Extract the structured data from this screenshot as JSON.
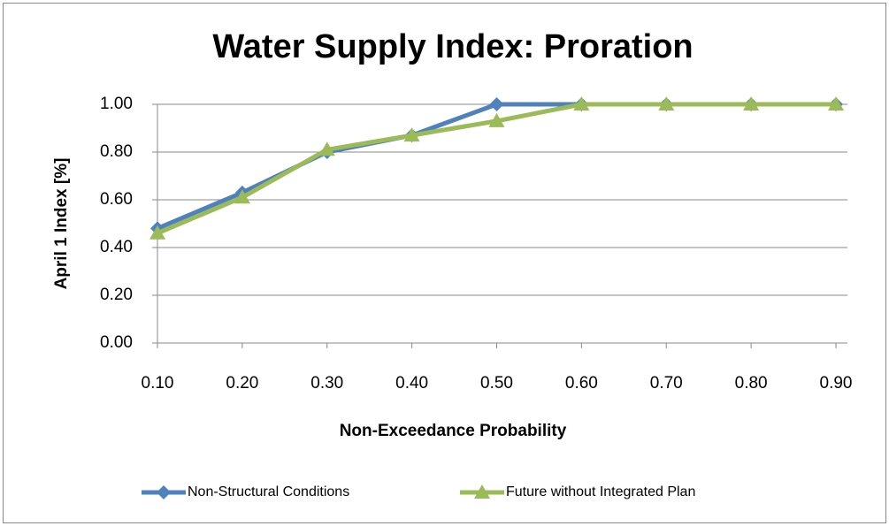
{
  "chart_data": {
    "type": "line",
    "title": "Water Supply Index: Proration",
    "x_label": "Non-Exceedance Probability",
    "y_label": "April 1 Index [%]",
    "categories": [
      "0.10",
      "0.20",
      "0.30",
      "0.40",
      "0.50",
      "0.60",
      "0.70",
      "0.80",
      "0.90"
    ],
    "series": [
      {
        "name": "Non-Structural Conditions",
        "color": "#4f81bd",
        "marker": "diamond",
        "values": [
          0.48,
          0.63,
          0.8,
          0.87,
          1.0,
          1.0,
          1.0,
          1.0,
          1.0
        ]
      },
      {
        "name": "Future without Integrated Plan",
        "color": "#9bbb59",
        "marker": "triangle",
        "values": [
          0.46,
          0.61,
          0.81,
          0.87,
          0.93,
          1.0,
          1.0,
          1.0,
          1.0
        ]
      }
    ],
    "ylim": [
      0,
      1
    ],
    "yticks": [
      {
        "value": 0,
        "label": "0.00"
      },
      {
        "value": 0.2,
        "label": "0.20"
      },
      {
        "value": 0.4,
        "label": "0.40"
      },
      {
        "value": 0.6,
        "label": "0.60"
      },
      {
        "value": 0.8,
        "label": "0.80"
      },
      {
        "value": 1,
        "label": "1.00"
      }
    ],
    "grid": true,
    "legend": "bottom"
  }
}
